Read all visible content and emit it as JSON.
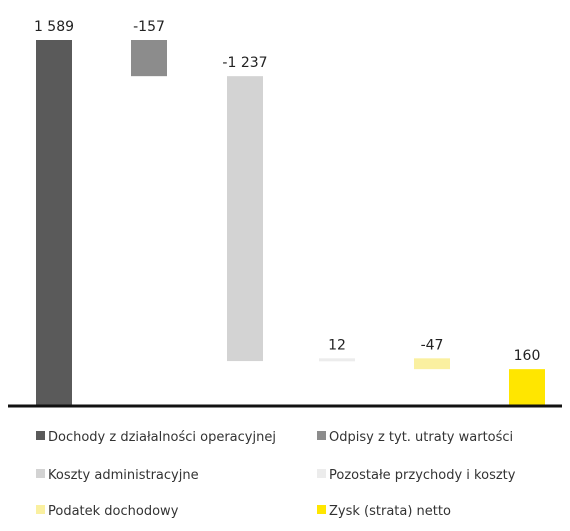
{
  "chart_data": {
    "type": "waterfall",
    "categories": [
      "Dochody z działalności operacyjnej",
      "Odpisy z tyt. utraty wartości",
      "Koszty administracyjne",
      "Pozostałe przychody i koszty",
      "Podatek dochodowy",
      "Zysk (strata) netto"
    ],
    "values": [
      1589,
      -157,
      -1237,
      12,
      -47,
      160
    ],
    "kinds": [
      "total",
      "delta",
      "delta",
      "delta",
      "delta",
      "total"
    ],
    "labels": [
      "1 589",
      "-157",
      "-1 237",
      "12",
      "-47",
      "160"
    ],
    "colors": [
      "#5a5a5a",
      "#8c8c8c",
      "#d3d3d3",
      "#ececec",
      "#faf0a0",
      "#ffe600"
    ],
    "ylim": [
      0,
      1589
    ],
    "grid": false,
    "legend_position": "bottom"
  }
}
